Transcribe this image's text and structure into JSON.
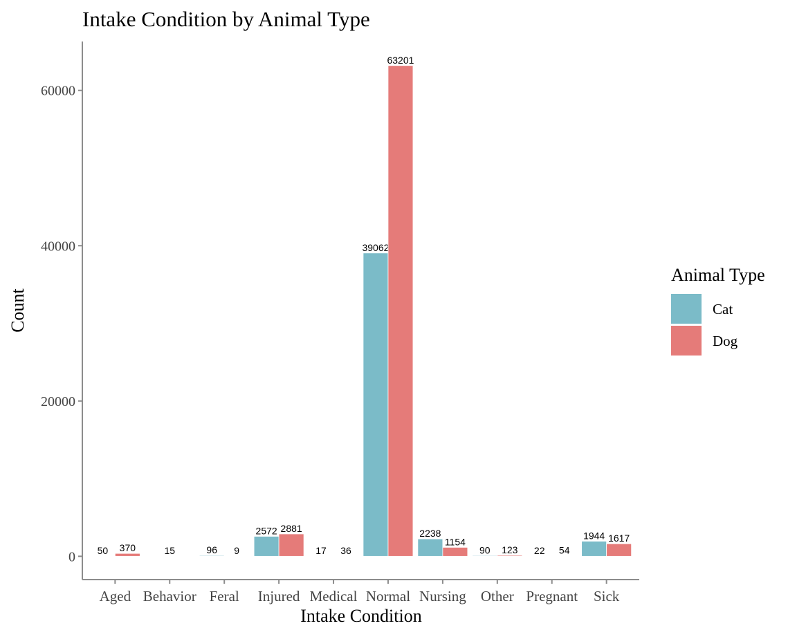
{
  "chart_data": {
    "type": "bar",
    "title": "Intake Condition by Animal Type",
    "xlabel": "Intake Condition",
    "ylabel": "Count",
    "categories": [
      "Aged",
      "Behavior",
      "Feral",
      "Injured",
      "Medical",
      "Normal",
      "Nursing",
      "Other",
      "Pregnant",
      "Sick"
    ],
    "series": [
      {
        "name": "Cat",
        "color": "#7bbbc8",
        "values": [
          50,
          null,
          96,
          2572,
          17,
          39062,
          2238,
          90,
          22,
          1944
        ]
      },
      {
        "name": "Dog",
        "color": "#e57b79",
        "values": [
          370,
          15,
          9,
          2881,
          36,
          63201,
          1154,
          123,
          54,
          1617
        ]
      }
    ],
    "yticks": [
      0,
      20000,
      40000,
      60000
    ],
    "ylim": [
      -3000,
      66300
    ],
    "legend": {
      "title": "Animal Type",
      "position": "right"
    },
    "grid": false
  }
}
